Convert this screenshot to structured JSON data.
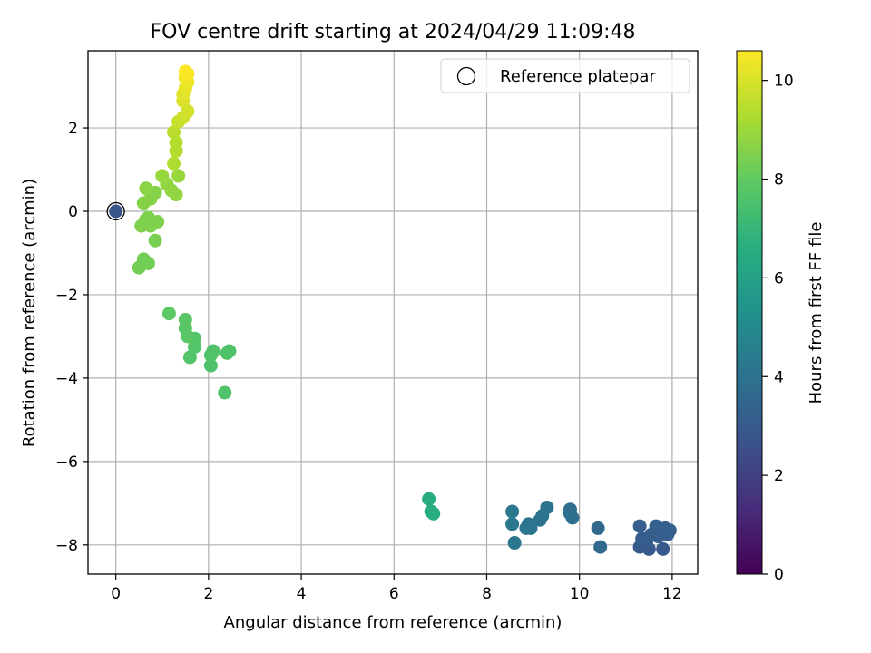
{
  "chart_data": {
    "type": "scatter",
    "title": "FOV centre drift starting at 2024/04/29 11:09:48",
    "xlabel": "Angular distance from reference (arcmin)",
    "ylabel": "Rotation from reference (arcmin)",
    "xlim": [
      -0.6,
      12.55
    ],
    "ylim": [
      -8.7,
      3.85
    ],
    "xticks": [
      0,
      2,
      4,
      6,
      8,
      10,
      12
    ],
    "yticks": [
      -8,
      -6,
      -4,
      -2,
      0,
      2
    ],
    "grid": true,
    "legend": {
      "placement": "top-right",
      "entries": [
        "Reference platepar"
      ]
    },
    "colorbar": {
      "label": "Hours from first FF file",
      "range": [
        0,
        10.6
      ],
      "ticks": [
        0,
        2,
        4,
        6,
        8,
        10
      ],
      "colormap": "viridis"
    },
    "reference_point": {
      "x": 0,
      "y": 0
    },
    "points": [
      {
        "x": 11.3,
        "y": -8.05,
        "c": 3.0
      },
      {
        "x": 11.5,
        "y": -8.1,
        "c": 3.0
      },
      {
        "x": 11.8,
        "y": -8.1,
        "c": 3.0
      },
      {
        "x": 11.35,
        "y": -7.85,
        "c": 3.1
      },
      {
        "x": 11.55,
        "y": -7.75,
        "c": 3.1
      },
      {
        "x": 11.7,
        "y": -7.8,
        "c": 3.1
      },
      {
        "x": 11.9,
        "y": -7.75,
        "c": 3.1
      },
      {
        "x": 11.95,
        "y": -7.65,
        "c": 3.2
      },
      {
        "x": 11.65,
        "y": -7.55,
        "c": 3.2
      },
      {
        "x": 11.3,
        "y": -7.55,
        "c": 3.2
      },
      {
        "x": 11.45,
        "y": -7.9,
        "c": 3.1
      },
      {
        "x": 11.85,
        "y": -7.6,
        "c": 3.2
      },
      {
        "x": 10.4,
        "y": -7.6,
        "c": 3.6
      },
      {
        "x": 10.45,
        "y": -8.05,
        "c": 3.6
      },
      {
        "x": 9.8,
        "y": -7.15,
        "c": 3.8
      },
      {
        "x": 9.85,
        "y": -7.35,
        "c": 3.8
      },
      {
        "x": 9.8,
        "y": -7.25,
        "c": 3.8
      },
      {
        "x": 9.3,
        "y": -7.1,
        "c": 4.0
      },
      {
        "x": 9.2,
        "y": -7.3,
        "c": 4.0
      },
      {
        "x": 9.15,
        "y": -7.4,
        "c": 4.0
      },
      {
        "x": 8.95,
        "y": -7.6,
        "c": 4.1
      },
      {
        "x": 8.9,
        "y": -7.5,
        "c": 4.1
      },
      {
        "x": 8.85,
        "y": -7.6,
        "c": 4.1
      },
      {
        "x": 8.55,
        "y": -7.2,
        "c": 4.2
      },
      {
        "x": 8.55,
        "y": -7.5,
        "c": 4.2
      },
      {
        "x": 8.6,
        "y": -7.95,
        "c": 4.2
      },
      {
        "x": 6.75,
        "y": -6.9,
        "c": 6.6
      },
      {
        "x": 6.8,
        "y": -7.2,
        "c": 6.6
      },
      {
        "x": 6.85,
        "y": -7.25,
        "c": 6.6
      },
      {
        "x": 2.35,
        "y": -4.35,
        "c": 7.6
      },
      {
        "x": 2.05,
        "y": -3.7,
        "c": 7.6
      },
      {
        "x": 2.05,
        "y": -3.45,
        "c": 7.6
      },
      {
        "x": 2.1,
        "y": -3.35,
        "c": 7.6
      },
      {
        "x": 2.4,
        "y": -3.4,
        "c": 7.6
      },
      {
        "x": 2.45,
        "y": -3.35,
        "c": 7.6
      },
      {
        "x": 1.6,
        "y": -3.5,
        "c": 7.7
      },
      {
        "x": 1.7,
        "y": -3.25,
        "c": 7.7
      },
      {
        "x": 1.7,
        "y": -3.05,
        "c": 7.7
      },
      {
        "x": 1.55,
        "y": -3.0,
        "c": 7.8
      },
      {
        "x": 1.5,
        "y": -2.8,
        "c": 7.8
      },
      {
        "x": 1.5,
        "y": -2.6,
        "c": 7.8
      },
      {
        "x": 1.15,
        "y": -2.45,
        "c": 7.9
      },
      {
        "x": 0.5,
        "y": -1.35,
        "c": 8.3
      },
      {
        "x": 0.7,
        "y": -1.25,
        "c": 8.3
      },
      {
        "x": 0.6,
        "y": -1.15,
        "c": 8.3
      },
      {
        "x": 0.85,
        "y": -0.7,
        "c": 8.4
      },
      {
        "x": 0.55,
        "y": -0.35,
        "c": 8.5
      },
      {
        "x": 0.75,
        "y": -0.35,
        "c": 8.5
      },
      {
        "x": 0.9,
        "y": -0.25,
        "c": 8.5
      },
      {
        "x": 0.65,
        "y": -0.2,
        "c": 8.5
      },
      {
        "x": 0.7,
        "y": -0.15,
        "c": 8.5
      },
      {
        "x": 0.6,
        "y": 0.2,
        "c": 8.6
      },
      {
        "x": 0.75,
        "y": 0.3,
        "c": 8.6
      },
      {
        "x": 0.85,
        "y": 0.45,
        "c": 8.6
      },
      {
        "x": 0.65,
        "y": 0.55,
        "c": 8.7
      },
      {
        "x": 1.3,
        "y": 0.4,
        "c": 8.8
      },
      {
        "x": 1.2,
        "y": 0.5,
        "c": 8.8
      },
      {
        "x": 1.1,
        "y": 0.65,
        "c": 8.8
      },
      {
        "x": 1.0,
        "y": 0.85,
        "c": 8.9
      },
      {
        "x": 1.35,
        "y": 0.85,
        "c": 8.9
      },
      {
        "x": 1.25,
        "y": 1.15,
        "c": 9.3
      },
      {
        "x": 1.3,
        "y": 1.45,
        "c": 9.4
      },
      {
        "x": 1.3,
        "y": 1.65,
        "c": 9.4
      },
      {
        "x": 1.25,
        "y": 1.9,
        "c": 9.5
      },
      {
        "x": 1.35,
        "y": 2.15,
        "c": 9.7
      },
      {
        "x": 1.45,
        "y": 2.25,
        "c": 9.8
      },
      {
        "x": 1.55,
        "y": 2.4,
        "c": 9.9
      },
      {
        "x": 1.45,
        "y": 2.65,
        "c": 10.0
      },
      {
        "x": 1.45,
        "y": 2.8,
        "c": 10.1
      },
      {
        "x": 1.5,
        "y": 2.95,
        "c": 10.2
      },
      {
        "x": 1.55,
        "y": 3.1,
        "c": 10.3
      },
      {
        "x": 1.5,
        "y": 3.2,
        "c": 10.4
      },
      {
        "x": 1.55,
        "y": 3.3,
        "c": 10.5
      },
      {
        "x": 1.5,
        "y": 3.35,
        "c": 10.6
      }
    ]
  }
}
